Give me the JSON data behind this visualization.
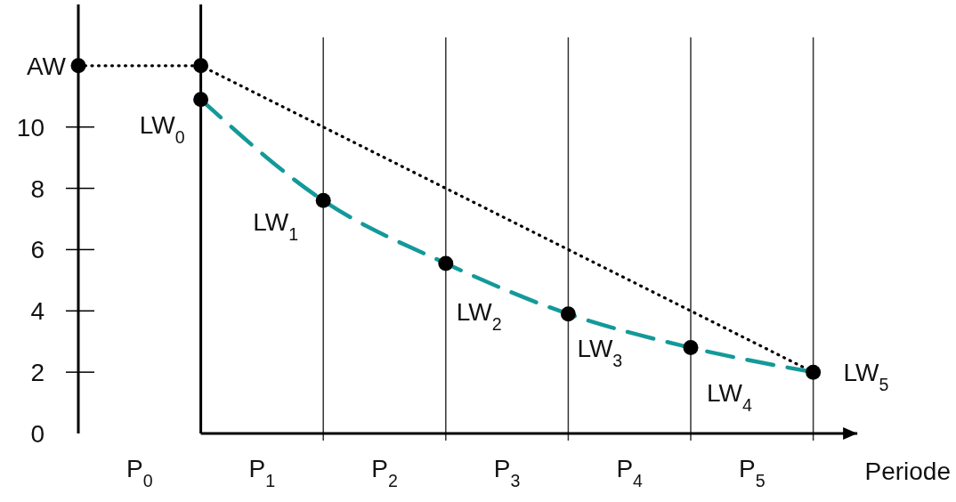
{
  "chart_data": {
    "type": "line",
    "xlabel": "Periode",
    "xlim": [
      0,
      6.36
    ],
    "ylim": [
      0,
      14
    ],
    "xticks": [
      {
        "value": 0.5,
        "label": "P$_{0}$"
      },
      {
        "value": 1,
        "label": null
      },
      {
        "value": 1.5,
        "label": "P$_{1}$"
      },
      {
        "value": 2,
        "label": null
      },
      {
        "value": 2.5,
        "label": "P$_{2}$"
      },
      {
        "value": 3,
        "label": null
      },
      {
        "value": 3.5,
        "label": "P$_{3}$"
      },
      {
        "value": 4,
        "label": null
      },
      {
        "value": 4.5,
        "label": "P$_{4}$"
      },
      {
        "value": 5,
        "label": null
      },
      {
        "value": 5.5,
        "label": "P$_{5}$"
      },
      {
        "value": 6,
        "label": null
      }
    ],
    "yticks": [
      0,
      2,
      4,
      6,
      8,
      10
    ],
    "grid": "x",
    "ref_lines": [
      {
        "axis": "x",
        "value": 1,
        "color": "#000000"
      }
    ],
    "series": [
      {
        "x": [
          0,
          1,
          6
        ],
        "values": [
          12,
          12,
          2
        ],
        "color": "#000000",
        "line_style": "dotted",
        "marker": "none"
      },
      {
        "x": [
          1,
          2,
          3,
          4,
          5,
          6
        ],
        "values": [
          10.9,
          7.6,
          5.55,
          3.9,
          2.8,
          2
        ],
        "color": "#14999a",
        "line_style": "dashed",
        "marker": "none"
      },
      {
        "type": "scatter",
        "x": [
          0,
          1,
          1,
          2,
          3,
          4,
          5,
          6
        ],
        "values": [
          12,
          12,
          10.9,
          7.6,
          5.55,
          3.9,
          2.8,
          2
        ],
        "color": "#000000",
        "marker": "circle"
      }
    ],
    "annotations": [
      {
        "text": "AW",
        "x": 0,
        "y": 12
      },
      {
        "text": "LW$_{0}$",
        "x": 1,
        "y": 10.9
      },
      {
        "text": "LW$_{1}$",
        "x": 2,
        "y": 7.6
      },
      {
        "text": "LW$_{2}$",
        "x": 3,
        "y": 5.55
      },
      {
        "text": "LW$_{3}$",
        "x": 4,
        "y": 3.9
      },
      {
        "text": "LW$_{4}$",
        "x": 5,
        "y": 2.8
      },
      {
        "text": "LW$_{5}$",
        "x": 6,
        "y": 2
      }
    ]
  }
}
